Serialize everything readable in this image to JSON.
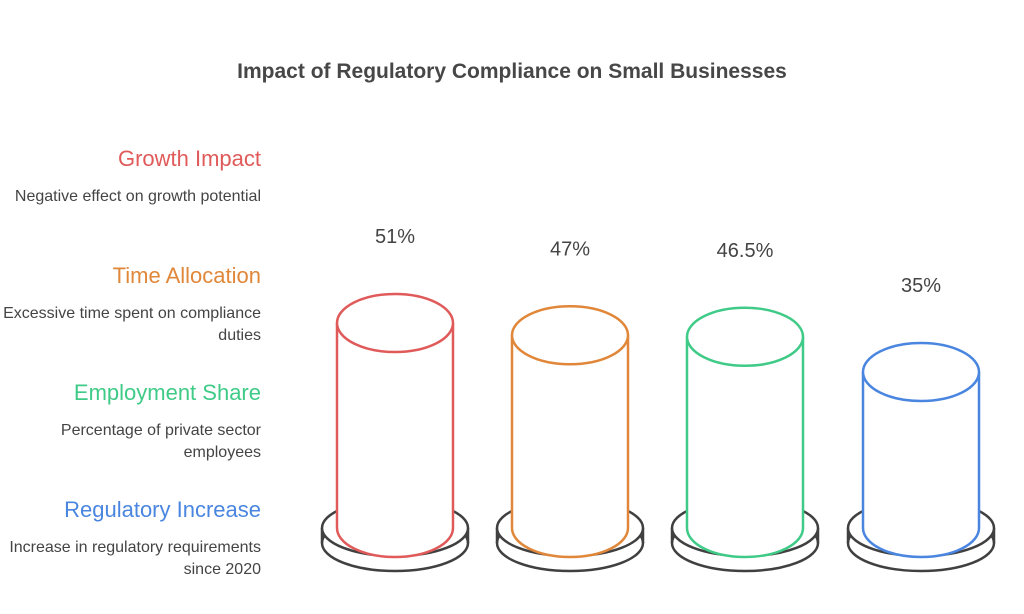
{
  "chart_data": {
    "type": "bar",
    "title": "Impact of Regulatory Compliance on Small Businesses",
    "categories": [
      "Growth Impact",
      "Time Allocation",
      "Employment Share",
      "Regulatory Increase"
    ],
    "descriptions": [
      "Negative effect on growth potential",
      "Excessive time spent on compliance duties",
      "Percentage of private sector employees",
      "Increase in regulatory requirements since 2020"
    ],
    "values": [
      51,
      47,
      46.5,
      35
    ],
    "value_labels": [
      "51%",
      "47%",
      "46.5%",
      "35%"
    ],
    "colors": [
      "#e05a5a",
      "#e0873a",
      "#3fcb87",
      "#4a86e0"
    ],
    "xlabel": "",
    "ylabel": "",
    "grid": false,
    "legend": "left"
  }
}
